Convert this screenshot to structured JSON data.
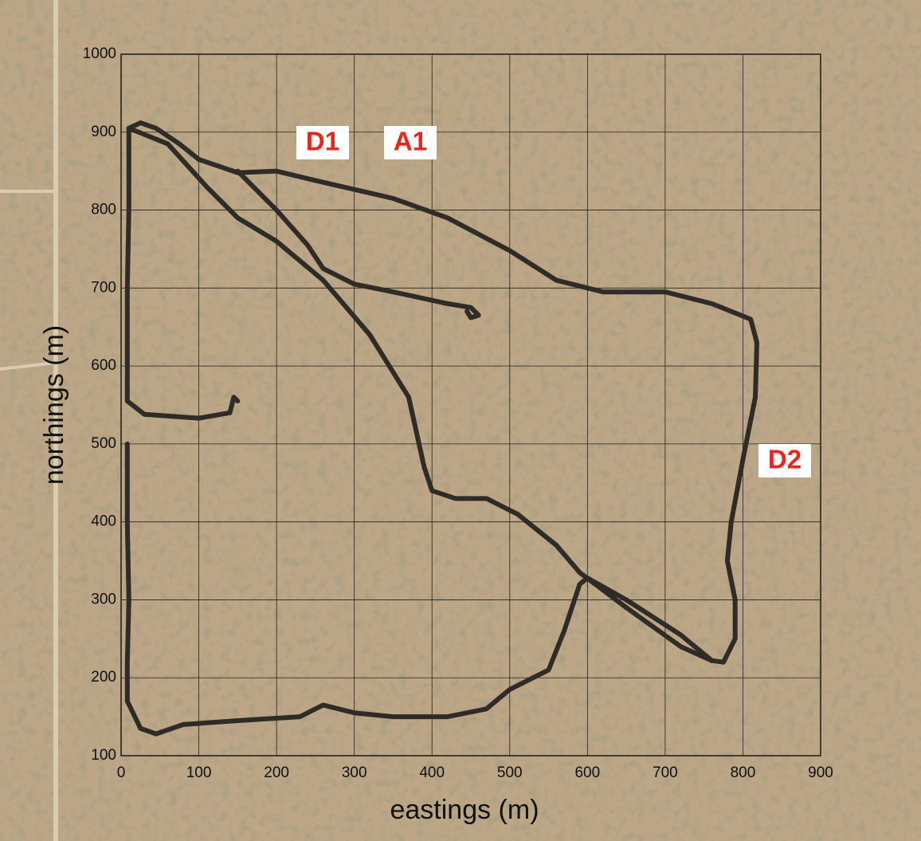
{
  "chart_data": {
    "type": "line",
    "xlabel": "eastings (m)",
    "ylabel": "northings (m)",
    "annotations": [
      "D1",
      "A1",
      "D2"
    ],
    "xlim": [
      0,
      900
    ],
    "ylim": [
      100,
      1000
    ],
    "xticks": [
      0,
      100,
      200,
      300,
      400,
      500,
      600,
      700,
      800,
      900
    ],
    "yticks": [
      100,
      200,
      300,
      400,
      500,
      600,
      700,
      800,
      900,
      1000
    ],
    "grid": true,
    "x": [
      150,
      145,
      140,
      100,
      30,
      8,
      8,
      10,
      10,
      25,
      45,
      75,
      100,
      150,
      200,
      250,
      350,
      420,
      500,
      560,
      620,
      700,
      760,
      810,
      818,
      816,
      800,
      785,
      780,
      790,
      790,
      775,
      760,
      720,
      650,
      600,
      590,
      570,
      550,
      500,
      470,
      420,
      350,
      300,
      260,
      230,
      150,
      80,
      45,
      25,
      8,
      8,
      10,
      8,
      8,
      null,
      10,
      60,
      110,
      150,
      200,
      260,
      320,
      370,
      390,
      400,
      430,
      470,
      510,
      560,
      590,
      610,
      650,
      720,
      760,
      null,
      150,
      200,
      240,
      260,
      300,
      350,
      420,
      450,
      460,
      450,
      445
    ],
    "series": [
      {
        "color": "#2f2b27",
        "values": [
          555,
          560,
          540,
          533,
          538,
          555,
          700,
          800,
          905,
          912,
          905,
          885,
          865,
          848,
          850,
          838,
          815,
          790,
          748,
          710,
          695,
          695,
          680,
          660,
          630,
          560,
          480,
          400,
          350,
          300,
          250,
          220,
          222,
          255,
          300,
          328,
          320,
          260,
          210,
          185,
          160,
          150,
          150,
          155,
          165,
          150,
          145,
          140,
          128,
          135,
          170,
          220,
          300,
          400,
          500,
          null,
          905,
          885,
          830,
          790,
          760,
          710,
          640,
          560,
          470,
          440,
          430,
          430,
          410,
          370,
          335,
          320,
          290,
          240,
          222,
          null,
          850,
          800,
          755,
          725,
          705,
          695,
          680,
          675,
          665,
          662,
          670
        ]
      }
    ]
  }
}
